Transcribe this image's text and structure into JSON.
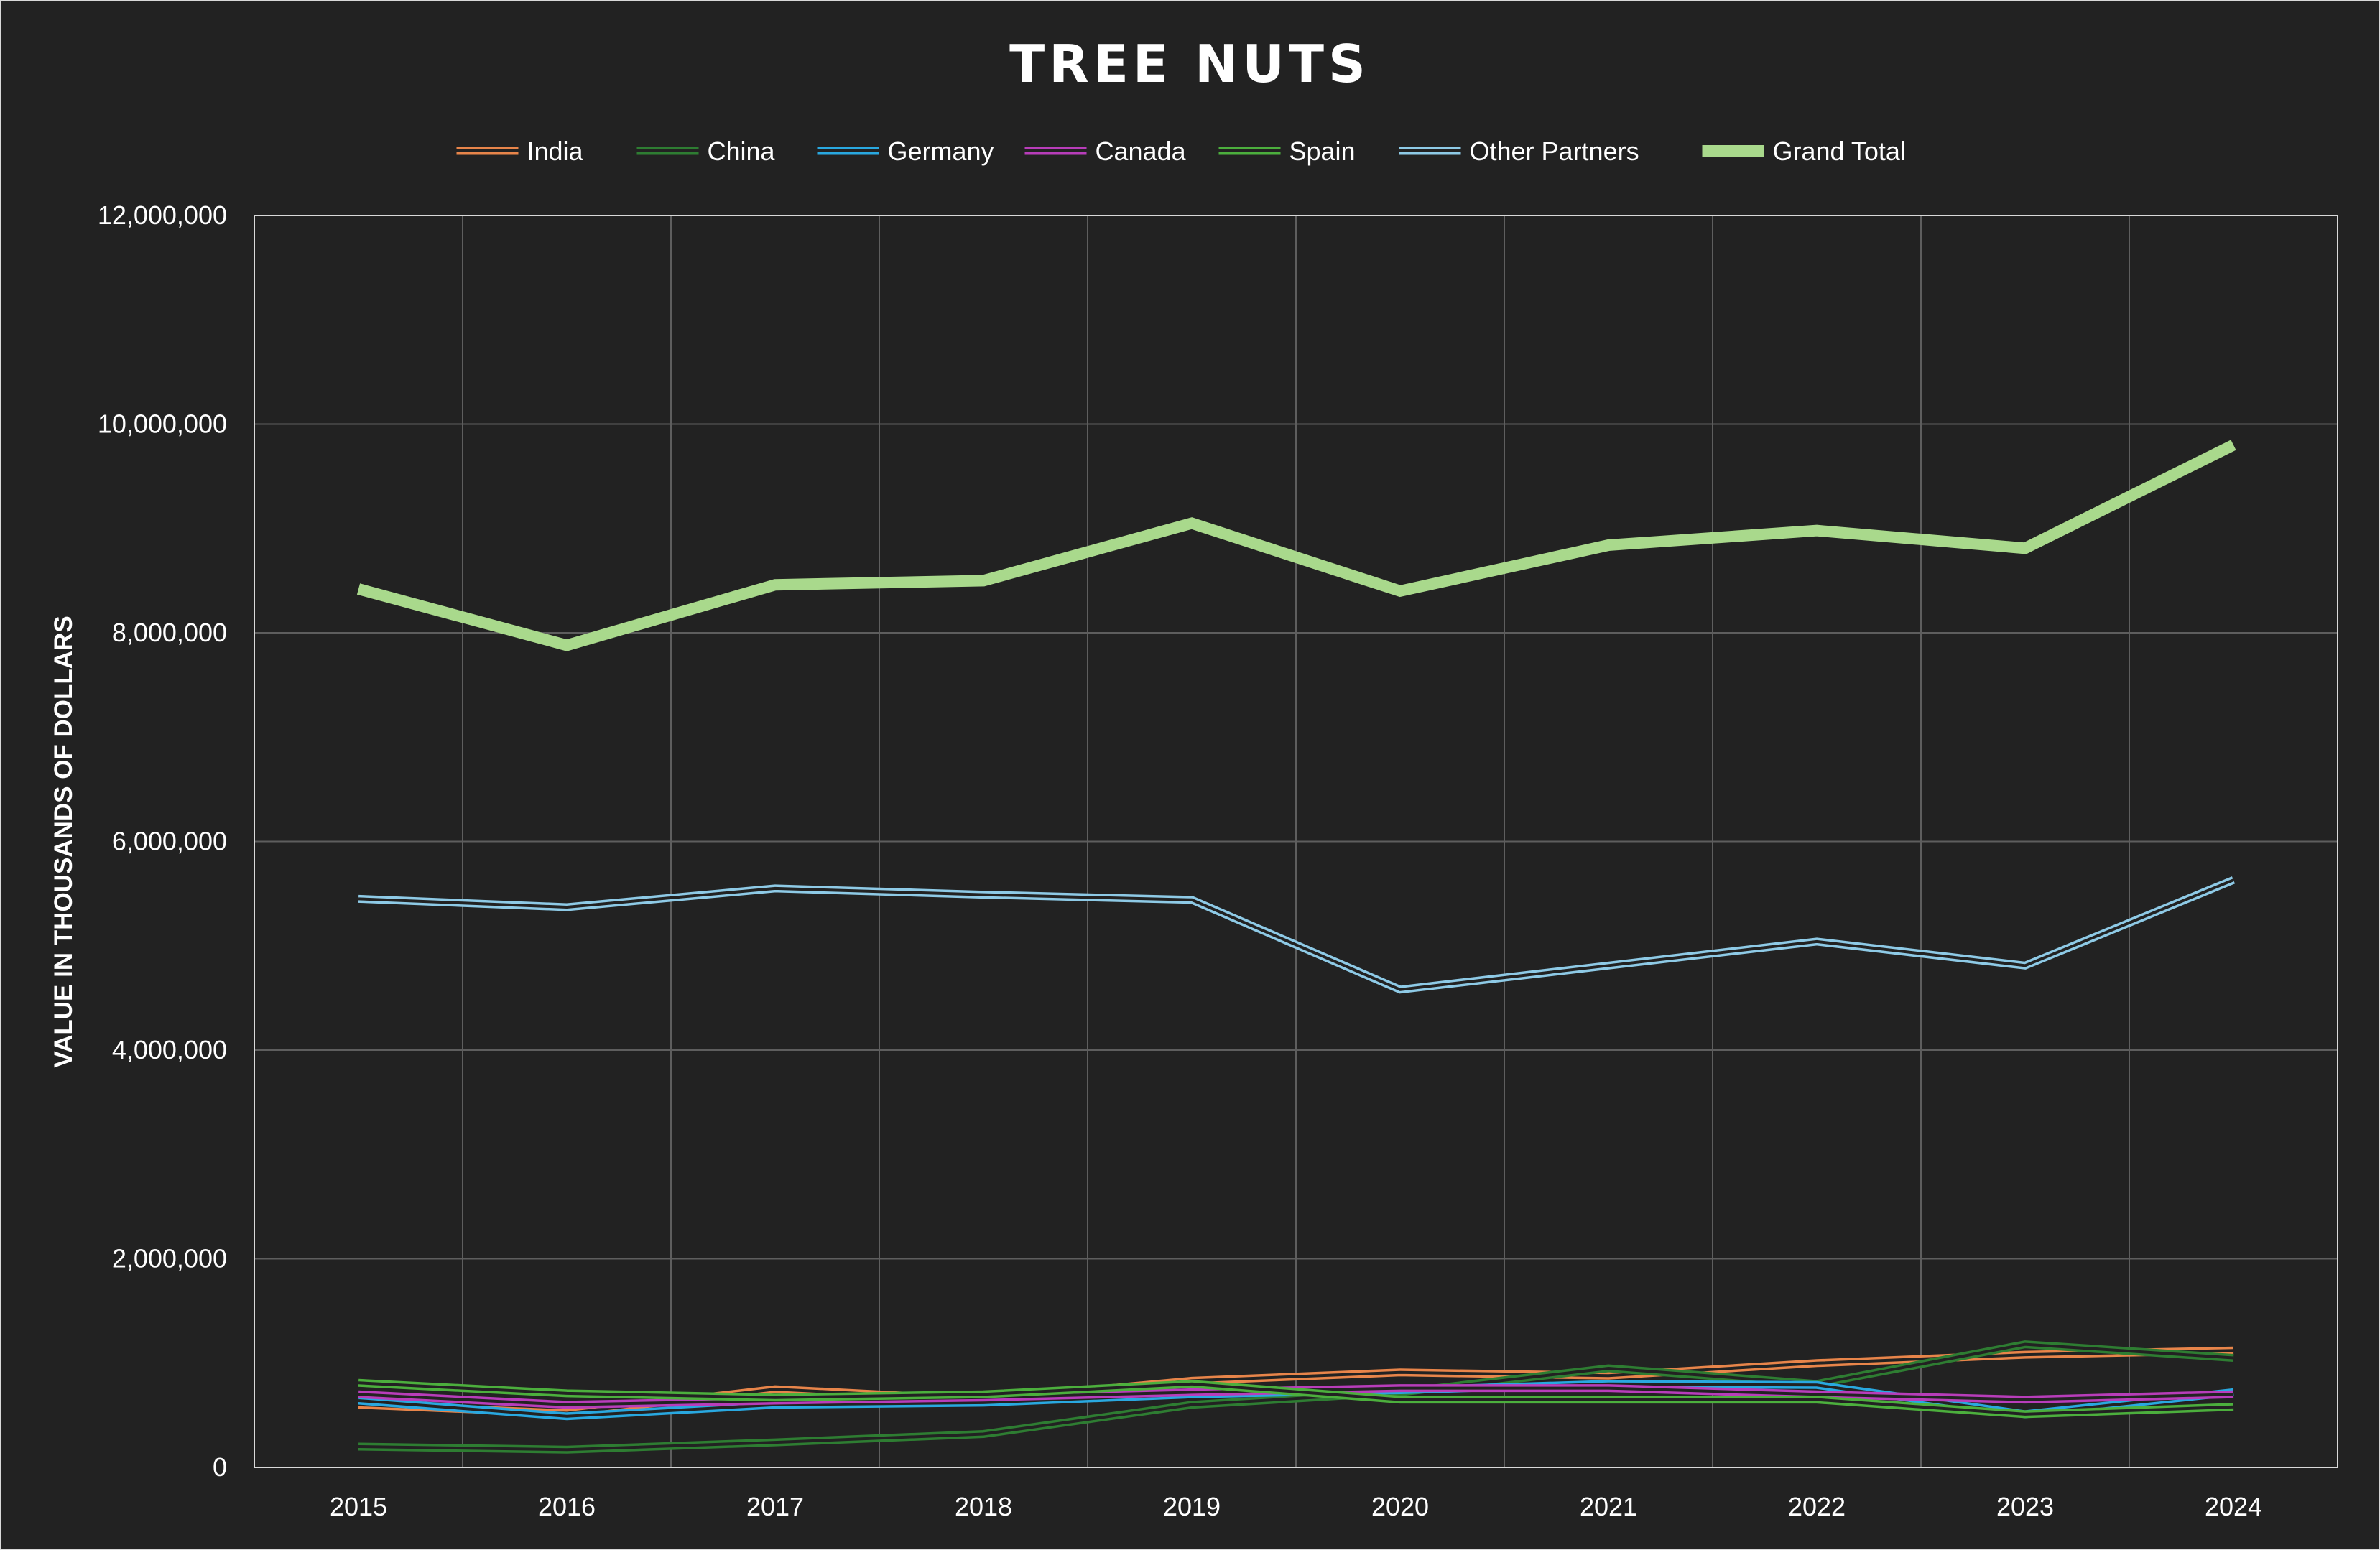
{
  "chart_data": {
    "type": "line",
    "title": "TREE NUTS",
    "xlabel": "",
    "ylabel": "VALUE IN THOUSANDS OF DOLLARS",
    "x": [
      "2015",
      "2016",
      "2017",
      "2018",
      "2019",
      "2020",
      "2021",
      "2022",
      "2023",
      "2024"
    ],
    "ylim": [
      0,
      12000000
    ],
    "yticks": [
      0,
      2000000,
      4000000,
      6000000,
      8000000,
      10000000,
      12000000
    ],
    "ytick_labels": [
      "0",
      "2,000,000",
      "4,000,000",
      "6,000,000",
      "8,000,000",
      "10,000,000",
      "12,000,000"
    ],
    "grid": true,
    "legend_position": "top",
    "series": [
      {
        "name": "India",
        "color": "#e8854a",
        "style": "double",
        "values": [
          600000,
          520000,
          750000,
          650000,
          830000,
          910000,
          880000,
          1000000,
          1080000,
          1120000
        ]
      },
      {
        "name": "China",
        "color": "#2e7d32",
        "style": "double",
        "values": [
          200000,
          170000,
          240000,
          320000,
          600000,
          720000,
          950000,
          800000,
          1180000,
          1050000
        ]
      },
      {
        "name": "Germany",
        "color": "#29a8e0",
        "style": "double",
        "values": [
          640000,
          490000,
          600000,
          620000,
          700000,
          740000,
          800000,
          790000,
          510000,
          720000
        ]
      },
      {
        "name": "Canada",
        "color": "#b83dba",
        "style": "double",
        "values": [
          700000,
          600000,
          640000,
          670000,
          720000,
          760000,
          760000,
          700000,
          650000,
          700000
        ]
      },
      {
        "name": "Spain",
        "color": "#4caf3d",
        "style": "double",
        "values": [
          810000,
          710000,
          670000,
          700000,
          800000,
          650000,
          650000,
          650000,
          510000,
          580000
        ]
      },
      {
        "name": "Other Partners",
        "color": "#8ecae6",
        "style": "double",
        "values": [
          5450000,
          5370000,
          5550000,
          5490000,
          5440000,
          4580000,
          4810000,
          5040000,
          4810000,
          5630000
        ]
      },
      {
        "name": "Grand Total",
        "color": "#a9d98c",
        "style": "thick",
        "values": [
          8420000,
          7880000,
          8460000,
          8500000,
          9050000,
          8400000,
          8840000,
          8980000,
          8810000,
          9800000
        ]
      }
    ]
  }
}
